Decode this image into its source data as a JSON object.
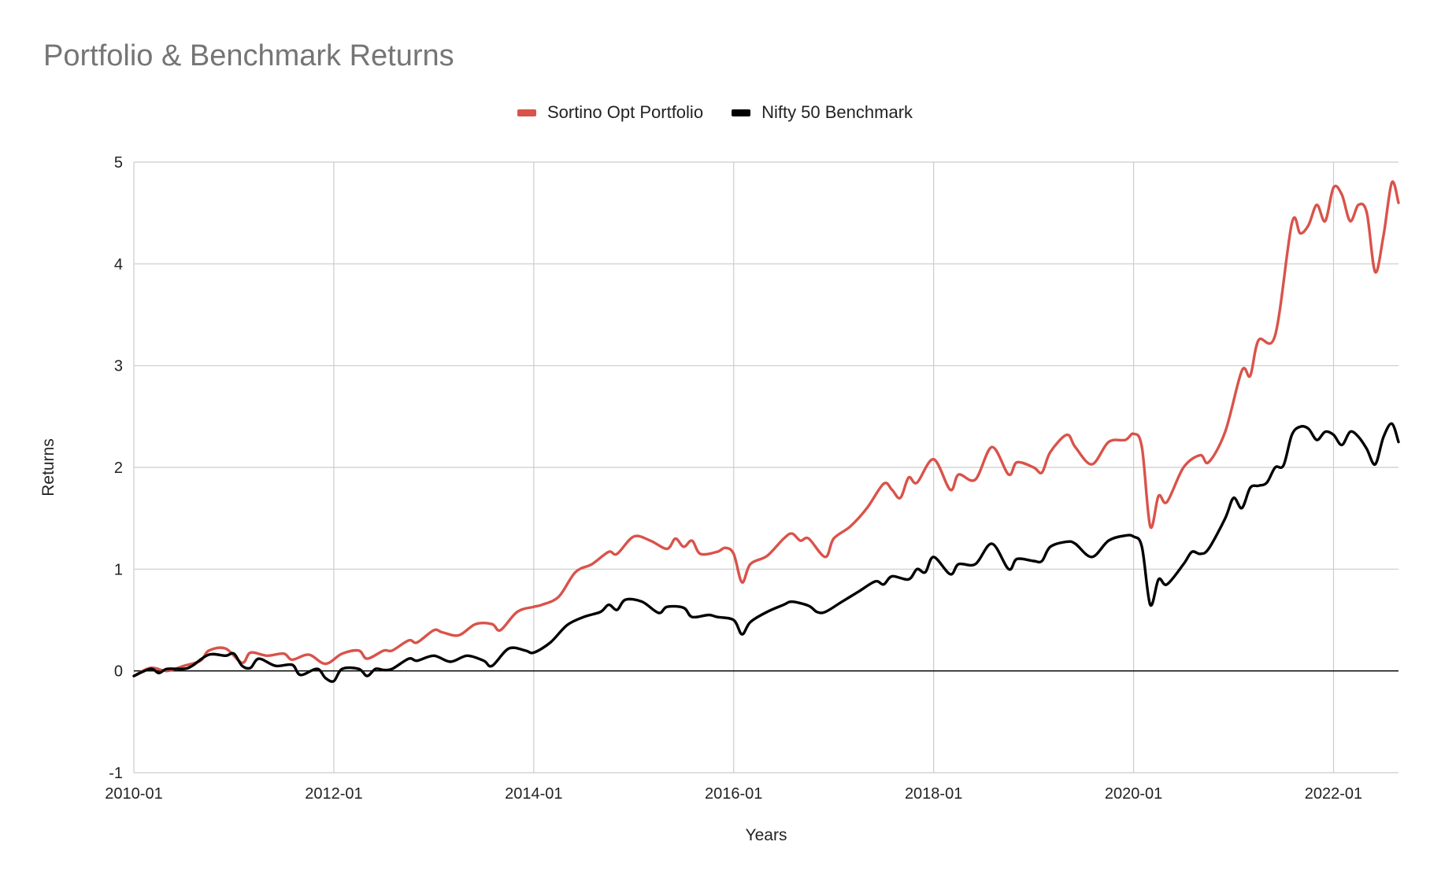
{
  "chart_data": {
    "type": "line",
    "title": "Portfolio & Benchmark Returns",
    "xlabel": "Years",
    "ylabel": "Returns",
    "xlim": [
      "2010-01",
      "2022-08"
    ],
    "ylim": [
      -1,
      5
    ],
    "y_ticks": [
      "-1",
      "0",
      "1",
      "2",
      "3",
      "4",
      "5"
    ],
    "x_ticks": [
      "2010-01",
      "2012-01",
      "2014-01",
      "2016-01",
      "2018-01",
      "2020-01",
      "2022-01"
    ],
    "grid": true,
    "legend_position": "top",
    "series": [
      {
        "name": "Sortino Opt Portfolio",
        "color": "#d9534a",
        "points": [
          [
            "2010-01",
            -0.05
          ],
          [
            "2010-03",
            0.03
          ],
          [
            "2010-05",
            0.0
          ],
          [
            "2010-07",
            0.05
          ],
          [
            "2010-09",
            0.1
          ],
          [
            "2010-10",
            0.2
          ],
          [
            "2010-12",
            0.22
          ],
          [
            "2011-02",
            0.08
          ],
          [
            "2011-03",
            0.18
          ],
          [
            "2011-05",
            0.15
          ],
          [
            "2011-07",
            0.17
          ],
          [
            "2011-08",
            0.11
          ],
          [
            "2011-10",
            0.16
          ],
          [
            "2011-12",
            0.07
          ],
          [
            "2012-02",
            0.17
          ],
          [
            "2012-04",
            0.2
          ],
          [
            "2012-05",
            0.12
          ],
          [
            "2012-07",
            0.2
          ],
          [
            "2012-08",
            0.2
          ],
          [
            "2012-10",
            0.3
          ],
          [
            "2012-11",
            0.28
          ],
          [
            "2013-01",
            0.4
          ],
          [
            "2013-02",
            0.38
          ],
          [
            "2013-04",
            0.35
          ],
          [
            "2013-06",
            0.46
          ],
          [
            "2013-08",
            0.46
          ],
          [
            "2013-09",
            0.4
          ],
          [
            "2013-11",
            0.58
          ],
          [
            "2014-01",
            0.63
          ],
          [
            "2014-02",
            0.65
          ],
          [
            "2014-04",
            0.73
          ],
          [
            "2014-06",
            0.97
          ],
          [
            "2014-08",
            1.05
          ],
          [
            "2014-10",
            1.17
          ],
          [
            "2014-11",
            1.15
          ],
          [
            "2015-01",
            1.32
          ],
          [
            "2015-03",
            1.28
          ],
          [
            "2015-05",
            1.2
          ],
          [
            "2015-06",
            1.3
          ],
          [
            "2015-07",
            1.22
          ],
          [
            "2015-08",
            1.28
          ],
          [
            "2015-09",
            1.15
          ],
          [
            "2015-11",
            1.17
          ],
          [
            "2015-12",
            1.21
          ],
          [
            "2016-01",
            1.15
          ],
          [
            "2016-02",
            0.87
          ],
          [
            "2016-03",
            1.05
          ],
          [
            "2016-05",
            1.13
          ],
          [
            "2016-07",
            1.3
          ],
          [
            "2016-08",
            1.35
          ],
          [
            "2016-09",
            1.28
          ],
          [
            "2016-10",
            1.3
          ],
          [
            "2016-12",
            1.12
          ],
          [
            "2017-01",
            1.3
          ],
          [
            "2017-03",
            1.42
          ],
          [
            "2017-05",
            1.6
          ],
          [
            "2017-07",
            1.84
          ],
          [
            "2017-08",
            1.78
          ],
          [
            "2017-09",
            1.7
          ],
          [
            "2017-10",
            1.9
          ],
          [
            "2017-11",
            1.85
          ],
          [
            "2018-01",
            2.08
          ],
          [
            "2018-03",
            1.78
          ],
          [
            "2018-04",
            1.93
          ],
          [
            "2018-06",
            1.88
          ],
          [
            "2018-08",
            2.2
          ],
          [
            "2018-10",
            1.93
          ],
          [
            "2018-11",
            2.05
          ],
          [
            "2019-01",
            2.0
          ],
          [
            "2019-02",
            1.95
          ],
          [
            "2019-03",
            2.15
          ],
          [
            "2019-05",
            2.32
          ],
          [
            "2019-06",
            2.2
          ],
          [
            "2019-08",
            2.03
          ],
          [
            "2019-10",
            2.25
          ],
          [
            "2019-12",
            2.27
          ],
          [
            "2020-01",
            2.33
          ],
          [
            "2020-02",
            2.2
          ],
          [
            "2020-03",
            1.42
          ],
          [
            "2020-04",
            1.72
          ],
          [
            "2020-05",
            1.66
          ],
          [
            "2020-07",
            2.0
          ],
          [
            "2020-09",
            2.12
          ],
          [
            "2020-10",
            2.05
          ],
          [
            "2020-12",
            2.35
          ],
          [
            "2021-02",
            2.95
          ],
          [
            "2021-03",
            2.9
          ],
          [
            "2021-04",
            3.25
          ],
          [
            "2021-06",
            3.3
          ],
          [
            "2021-08",
            4.4
          ],
          [
            "2021-09",
            4.3
          ],
          [
            "2021-10",
            4.38
          ],
          [
            "2021-11",
            4.58
          ],
          [
            "2021-12",
            4.42
          ],
          [
            "2022-01",
            4.75
          ],
          [
            "2022-02",
            4.68
          ],
          [
            "2022-03",
            4.42
          ],
          [
            "2022-04",
            4.58
          ],
          [
            "2022-05",
            4.5
          ],
          [
            "2022-06",
            3.92
          ],
          [
            "2022-07",
            4.28
          ],
          [
            "2022-08",
            4.8
          ],
          [
            "2022-09",
            4.6
          ]
        ]
      },
      {
        "name": "Nifty 50 Benchmark",
        "color": "#000000",
        "points": [
          [
            "2010-01",
            -0.05
          ],
          [
            "2010-03",
            0.02
          ],
          [
            "2010-04",
            -0.02
          ],
          [
            "2010-05",
            0.02
          ],
          [
            "2010-07",
            0.02
          ],
          [
            "2010-08",
            0.05
          ],
          [
            "2010-10",
            0.16
          ],
          [
            "2010-12",
            0.15
          ],
          [
            "2011-01",
            0.17
          ],
          [
            "2011-02",
            0.05
          ],
          [
            "2011-03",
            0.03
          ],
          [
            "2011-04",
            0.12
          ],
          [
            "2011-06",
            0.05
          ],
          [
            "2011-08",
            0.06
          ],
          [
            "2011-09",
            -0.04
          ],
          [
            "2011-11",
            0.02
          ],
          [
            "2011-12",
            -0.07
          ],
          [
            "2012-01",
            -0.1
          ],
          [
            "2012-02",
            0.02
          ],
          [
            "2012-04",
            0.02
          ],
          [
            "2012-05",
            -0.05
          ],
          [
            "2012-06",
            0.02
          ],
          [
            "2012-07",
            0.01
          ],
          [
            "2012-08",
            0.02
          ],
          [
            "2012-10",
            0.12
          ],
          [
            "2012-11",
            0.1
          ],
          [
            "2013-01",
            0.15
          ],
          [
            "2013-03",
            0.09
          ],
          [
            "2013-05",
            0.15
          ],
          [
            "2013-07",
            0.1
          ],
          [
            "2013-08",
            0.05
          ],
          [
            "2013-10",
            0.22
          ],
          [
            "2013-12",
            0.2
          ],
          [
            "2014-01",
            0.18
          ],
          [
            "2014-03",
            0.28
          ],
          [
            "2014-05",
            0.45
          ],
          [
            "2014-07",
            0.53
          ],
          [
            "2014-09",
            0.58
          ],
          [
            "2014-10",
            0.65
          ],
          [
            "2014-11",
            0.6
          ],
          [
            "2014-12",
            0.7
          ],
          [
            "2015-02",
            0.68
          ],
          [
            "2015-04",
            0.57
          ],
          [
            "2015-05",
            0.63
          ],
          [
            "2015-07",
            0.62
          ],
          [
            "2015-08",
            0.53
          ],
          [
            "2015-10",
            0.55
          ],
          [
            "2015-11",
            0.53
          ],
          [
            "2016-01",
            0.5
          ],
          [
            "2016-02",
            0.36
          ],
          [
            "2016-03",
            0.48
          ],
          [
            "2016-05",
            0.58
          ],
          [
            "2016-07",
            0.65
          ],
          [
            "2016-08",
            0.68
          ],
          [
            "2016-10",
            0.64
          ],
          [
            "2016-11",
            0.58
          ],
          [
            "2016-12",
            0.58
          ],
          [
            "2017-02",
            0.68
          ],
          [
            "2017-04",
            0.78
          ],
          [
            "2017-06",
            0.88
          ],
          [
            "2017-07",
            0.85
          ],
          [
            "2017-08",
            0.93
          ],
          [
            "2017-10",
            0.9
          ],
          [
            "2017-11",
            1.0
          ],
          [
            "2017-12",
            0.97
          ],
          [
            "2018-01",
            1.12
          ],
          [
            "2018-03",
            0.95
          ],
          [
            "2018-04",
            1.05
          ],
          [
            "2018-06",
            1.05
          ],
          [
            "2018-08",
            1.25
          ],
          [
            "2018-10",
            1.0
          ],
          [
            "2018-11",
            1.1
          ],
          [
            "2019-01",
            1.08
          ],
          [
            "2019-02",
            1.08
          ],
          [
            "2019-03",
            1.22
          ],
          [
            "2019-05",
            1.27
          ],
          [
            "2019-06",
            1.25
          ],
          [
            "2019-08",
            1.12
          ],
          [
            "2019-10",
            1.28
          ],
          [
            "2019-12",
            1.33
          ],
          [
            "2020-01",
            1.32
          ],
          [
            "2020-02",
            1.22
          ],
          [
            "2020-03",
            0.65
          ],
          [
            "2020-04",
            0.9
          ],
          [
            "2020-05",
            0.85
          ],
          [
            "2020-07",
            1.05
          ],
          [
            "2020-08",
            1.17
          ],
          [
            "2020-09",
            1.15
          ],
          [
            "2020-10",
            1.2
          ],
          [
            "2020-12",
            1.5
          ],
          [
            "2021-01",
            1.7
          ],
          [
            "2021-02",
            1.6
          ],
          [
            "2021-03",
            1.8
          ],
          [
            "2021-04",
            1.82
          ],
          [
            "2021-05",
            1.85
          ],
          [
            "2021-06",
            2.0
          ],
          [
            "2021-07",
            2.02
          ],
          [
            "2021-08",
            2.32
          ],
          [
            "2021-09",
            2.4
          ],
          [
            "2021-10",
            2.38
          ],
          [
            "2021-11",
            2.27
          ],
          [
            "2021-12",
            2.35
          ],
          [
            "2022-01",
            2.32
          ],
          [
            "2022-02",
            2.22
          ],
          [
            "2022-03",
            2.35
          ],
          [
            "2022-04",
            2.3
          ],
          [
            "2022-05",
            2.18
          ],
          [
            "2022-06",
            2.03
          ],
          [
            "2022-07",
            2.3
          ],
          [
            "2022-08",
            2.43
          ],
          [
            "2022-09",
            2.25
          ]
        ]
      }
    ]
  }
}
